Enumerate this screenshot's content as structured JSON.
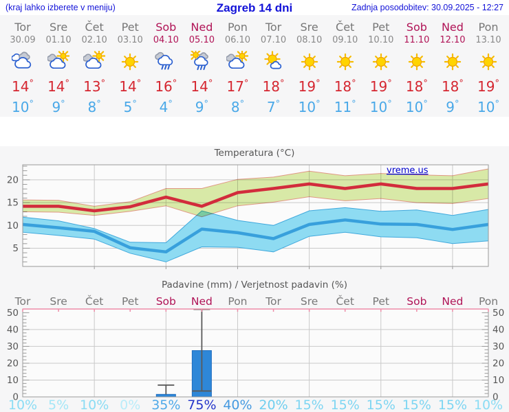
{
  "header": {
    "left_note": "(kraj lahko izberete v meniju)",
    "title": "Zagreb 14 dni",
    "updated": "Zadnja posodobitev: 30.09.2025 - 12:27"
  },
  "deg_symbol": "°",
  "watermark": "vreme.us",
  "days": [
    {
      "name": "Tor",
      "date": "30.09",
      "weekend": false,
      "icon": "cloudy",
      "tmax": "14",
      "tmin": "10"
    },
    {
      "name": "Sre",
      "date": "01.10",
      "weekend": false,
      "icon": "partly-sunny",
      "tmax": "14",
      "tmin": "9"
    },
    {
      "name": "Čet",
      "date": "02.10",
      "weekend": false,
      "icon": "partly-sunny",
      "tmax": "13",
      "tmin": "8"
    },
    {
      "name": "Pet",
      "date": "03.10",
      "weekend": false,
      "icon": "sunny",
      "tmax": "14",
      "tmin": "5"
    },
    {
      "name": "Sob",
      "date": "04.10",
      "weekend": true,
      "icon": "rain",
      "tmax": "16",
      "tmin": "4"
    },
    {
      "name": "Ned",
      "date": "05.10",
      "weekend": true,
      "icon": "sun-rain",
      "tmax": "14",
      "tmin": "9"
    },
    {
      "name": "Pon",
      "date": "06.10",
      "weekend": false,
      "icon": "partly-sunny",
      "tmax": "17",
      "tmin": "8"
    },
    {
      "name": "Tor",
      "date": "07.10",
      "weekend": false,
      "icon": "mostly-sunny",
      "tmax": "18",
      "tmin": "7"
    },
    {
      "name": "Sre",
      "date": "08.10",
      "weekend": false,
      "icon": "sunny",
      "tmax": "19",
      "tmin": "10"
    },
    {
      "name": "Čet",
      "date": "09.10",
      "weekend": false,
      "icon": "sunny",
      "tmax": "18",
      "tmin": "11"
    },
    {
      "name": "Pet",
      "date": "10.10",
      "weekend": false,
      "icon": "sunny",
      "tmax": "19",
      "tmin": "10"
    },
    {
      "name": "Sob",
      "date": "11.10",
      "weekend": true,
      "icon": "sunny",
      "tmax": "18",
      "tmin": "10"
    },
    {
      "name": "Ned",
      "date": "12.10",
      "weekend": true,
      "icon": "sunny",
      "tmax": "18",
      "tmin": "9"
    },
    {
      "name": "Pon",
      "date": "13.10",
      "weekend": false,
      "icon": "sunny",
      "tmax": "19",
      "tmin": "10"
    }
  ],
  "colors": {
    "header_text": "#1212d8",
    "weekday": "#777777",
    "weekend": "#b01356",
    "tmax": "#d52630",
    "tmin": "#49a8e8",
    "bar": "#2e87d8",
    "bar_border": "#1d6cc0",
    "red_line": "#d22c3c",
    "blue_line": "#38a0dc",
    "green_band": "#dcedaa",
    "green_band_edge": "#e49a86",
    "blue_band": "#8edbf2",
    "blue_band_edge": "#3fa8dc",
    "grid": "#c9c9c9",
    "frame": "#9a9a9a",
    "axis_text": "#555555",
    "pink_line": "#ee8ca8",
    "whisker": "#5a5a5a",
    "watermark": "#0000cc",
    "prob": {
      "0": "#b9ecf9",
      "5": "#a4e6f7",
      "10": "#8bdcf4",
      "15": "#7dd5f2",
      "20": "#6fceef",
      "35": "#4fa9e8",
      "40": "#4599e0",
      "75": "#2535c9"
    }
  },
  "chart_data": [
    {
      "type": "line",
      "title": "Temperatura (°C)",
      "xlabel": "",
      "ylabel": "°C",
      "ylim": [
        1,
        23.3
      ],
      "yticks": [
        5,
        10,
        15,
        20
      ],
      "grid_day_indices": [
        2,
        4,
        6,
        8,
        10,
        12
      ],
      "categories": [
        "Tor 30.09",
        "Sre 01.10",
        "Čet 02.10",
        "Pet 03.10",
        "Sob 04.10",
        "Ned 05.10",
        "Pon 06.10",
        "Tor 07.10",
        "Sre 08.10",
        "Čet 09.10",
        "Pet 10.10",
        "Sob 11.10",
        "Ned 12.10",
        "Pon 13.10"
      ],
      "series": [
        {
          "name": "max-temp",
          "values": [
            14.2,
            14.2,
            13.2,
            14.1,
            16.2,
            14.2,
            17.2,
            18.1,
            19.1,
            18.1,
            19.1,
            18.1,
            18.1,
            19.1
          ]
        },
        {
          "name": "min-temp",
          "values": [
            10.2,
            9.5,
            8.7,
            5.1,
            4.2,
            9.2,
            8.4,
            7.1,
            10.2,
            11.2,
            10.3,
            10.2,
            9.1,
            10.2
          ]
        }
      ],
      "bands": [
        {
          "name": "min-temp-range",
          "upper": [
            11.8,
            11.0,
            9.3,
            6.3,
            6.2,
            13.2,
            11.1,
            10.0,
            13.2,
            13.9,
            13.1,
            13.4,
            12.2,
            13.5
          ],
          "lower": [
            8.5,
            7.8,
            7.0,
            3.9,
            2.0,
            5.3,
            5.2,
            4.2,
            7.6,
            8.5,
            7.5,
            7.3,
            6.0,
            6.6
          ]
        },
        {
          "name": "max-temp-range",
          "upper": [
            15.6,
            15.5,
            14.2,
            15.2,
            18.1,
            18.1,
            20.1,
            20.6,
            21.9,
            20.9,
            21.4,
            21.1,
            20.9,
            22.4
          ],
          "lower": [
            13.0,
            12.9,
            12.2,
            13.1,
            14.3,
            11.9,
            14.3,
            15.1,
            16.3,
            15.4,
            15.9,
            15.0,
            14.8,
            15.9
          ]
        }
      ]
    },
    {
      "type": "bar",
      "title": "Padavine (mm) / Verjetnost padavin (%)",
      "ylabel": "mm",
      "ylim": [
        0,
        52.2
      ],
      "yticks": [
        0,
        10,
        20,
        30,
        40,
        50
      ],
      "grid_day_indices": [
        2,
        4,
        6,
        8,
        10,
        12
      ],
      "categories": [
        "Tor",
        "Sre",
        "Čet",
        "Pet",
        "Sob",
        "Ned",
        "Pon",
        "Tor",
        "Sre",
        "Čet",
        "Pet",
        "Sob",
        "Ned",
        "Pon"
      ],
      "weekend_indices": [
        4,
        5,
        11,
        12
      ],
      "values": [
        0,
        0,
        0,
        0,
        1.5,
        27.5,
        0,
        0,
        0,
        0,
        0,
        0,
        0,
        0
      ],
      "whiskers": [
        {
          "day": 4,
          "low": 1.5,
          "high": 7,
          "cap_low": false
        },
        {
          "day": 5,
          "low": 3.5,
          "high": 52,
          "cap_low": true
        }
      ],
      "probabilities": [
        10,
        5,
        10,
        0,
        35,
        75,
        40,
        20,
        15,
        15,
        15,
        15,
        15,
        10
      ],
      "prob_suffix": "%"
    }
  ]
}
